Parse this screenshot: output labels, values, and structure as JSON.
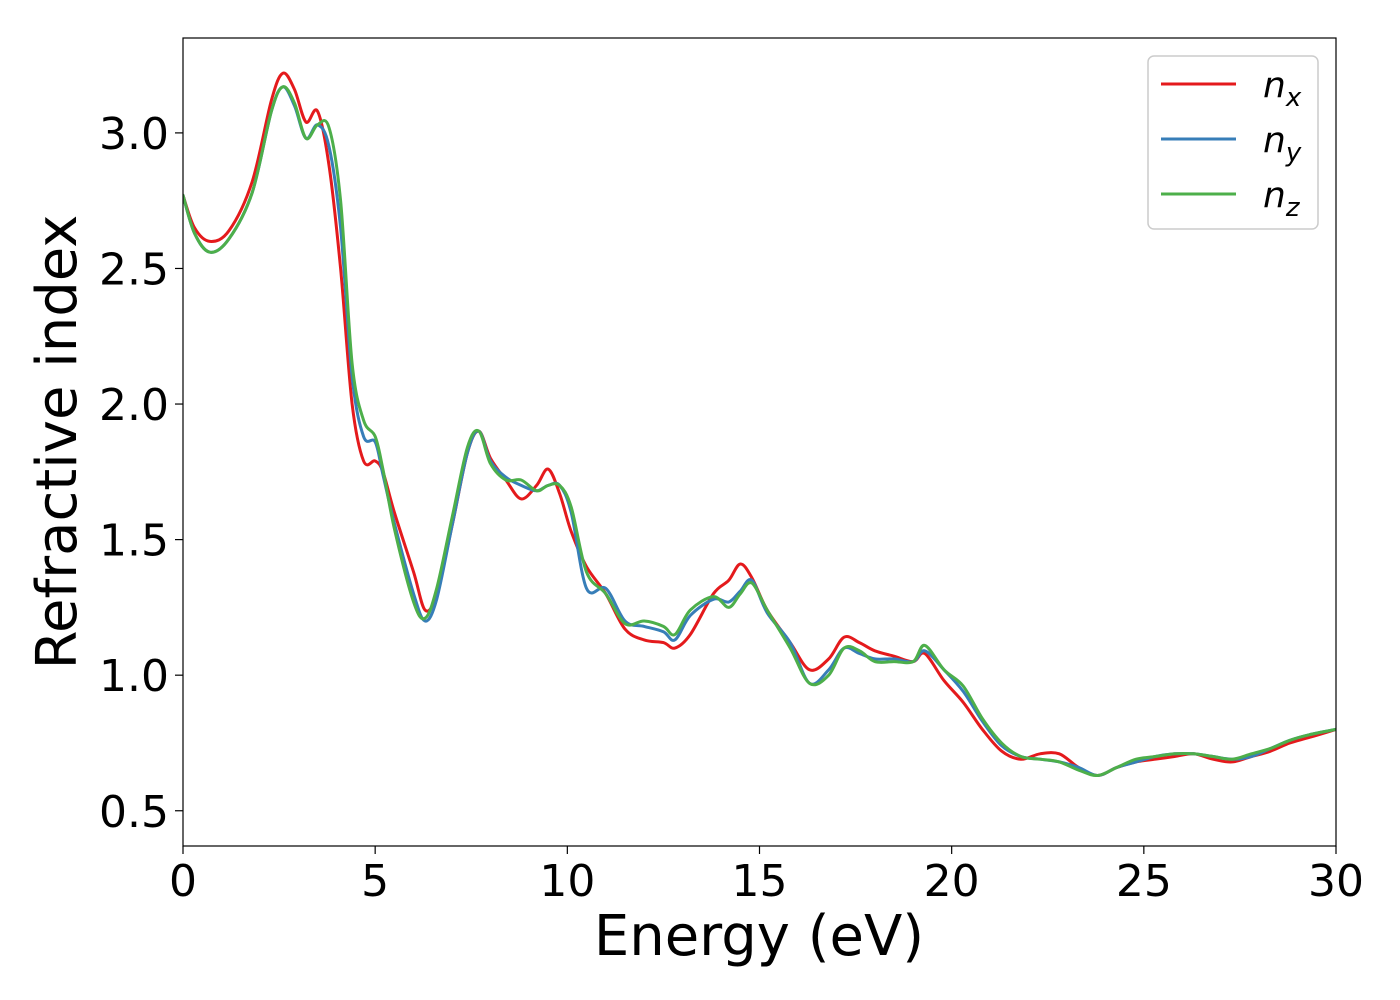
{
  "chart_data": {
    "type": "line",
    "xlabel": "Energy (eV)",
    "ylabel": "Refractive index",
    "xlim": [
      0,
      30
    ],
    "ylim": [
      0.37,
      3.35
    ],
    "xticks": [
      0,
      5,
      10,
      15,
      20,
      25,
      30
    ],
    "xtick_labels": [
      "0",
      "5",
      "10",
      "15",
      "20",
      "25",
      "30"
    ],
    "yticks": [
      0.5,
      1.0,
      1.5,
      2.0,
      2.5,
      3.0
    ],
    "ytick_labels": [
      "0.5",
      "1.0",
      "1.5",
      "2.0",
      "2.5",
      "3.0"
    ],
    "grid": false,
    "legend_position": "top-right",
    "series": [
      {
        "name": "n_x",
        "legend_base": "n",
        "legend_sub": "x",
        "color": "#e41a1c",
        "x": [
          0,
          0.3,
          0.7,
          1.2,
          1.8,
          2.3,
          2.6,
          2.9,
          3.2,
          3.5,
          3.8,
          4.1,
          4.4,
          4.7,
          5.0,
          5.2,
          5.5,
          6.0,
          6.3,
          6.6,
          7.0,
          7.4,
          7.7,
          8.0,
          8.4,
          8.8,
          9.2,
          9.5,
          9.8,
          10.1,
          10.5,
          11.0,
          11.5,
          12.0,
          12.5,
          12.8,
          13.2,
          13.8,
          14.2,
          14.5,
          14.8,
          15.2,
          15.8,
          16.3,
          16.8,
          17.2,
          17.6,
          18.0,
          18.5,
          19.0,
          19.3,
          19.8,
          20.3,
          20.8,
          21.3,
          21.8,
          22.3,
          22.8,
          23.3,
          23.8,
          24.3,
          24.8,
          25.3,
          25.8,
          26.3,
          26.8,
          27.3,
          27.8,
          28.3,
          28.8,
          29.3,
          30.0
        ],
        "y": [
          2.77,
          2.65,
          2.6,
          2.64,
          2.82,
          3.12,
          3.22,
          3.16,
          3.04,
          3.08,
          2.88,
          2.5,
          2.0,
          1.79,
          1.79,
          1.75,
          1.6,
          1.38,
          1.24,
          1.3,
          1.55,
          1.82,
          1.9,
          1.8,
          1.72,
          1.65,
          1.7,
          1.76,
          1.67,
          1.53,
          1.4,
          1.3,
          1.17,
          1.13,
          1.12,
          1.1,
          1.15,
          1.3,
          1.35,
          1.41,
          1.36,
          1.24,
          1.12,
          1.02,
          1.06,
          1.14,
          1.12,
          1.09,
          1.07,
          1.05,
          1.08,
          0.98,
          0.9,
          0.8,
          0.72,
          0.69,
          0.71,
          0.71,
          0.66,
          0.63,
          0.66,
          0.68,
          0.69,
          0.7,
          0.71,
          0.69,
          0.68,
          0.7,
          0.72,
          0.75,
          0.77,
          0.8
        ]
      },
      {
        "name": "n_y",
        "legend_base": "n",
        "legend_sub": "y",
        "color": "#377eb8",
        "x": [
          0,
          0.3,
          0.7,
          1.2,
          1.8,
          2.3,
          2.6,
          2.9,
          3.2,
          3.5,
          3.8,
          4.1,
          4.4,
          4.7,
          5.0,
          5.2,
          5.5,
          6.0,
          6.3,
          6.6,
          7.0,
          7.4,
          7.7,
          8.0,
          8.4,
          8.8,
          9.2,
          9.5,
          9.8,
          10.1,
          10.5,
          11.0,
          11.5,
          12.0,
          12.5,
          12.8,
          13.2,
          13.8,
          14.2,
          14.5,
          14.8,
          15.2,
          15.8,
          16.3,
          16.8,
          17.2,
          17.6,
          18.0,
          18.5,
          19.0,
          19.3,
          19.8,
          20.3,
          20.8,
          21.3,
          21.8,
          22.3,
          22.8,
          23.3,
          23.8,
          24.3,
          24.8,
          25.3,
          25.8,
          26.3,
          26.8,
          27.3,
          27.8,
          28.3,
          28.8,
          29.3,
          30.0
        ],
        "y": [
          2.77,
          2.63,
          2.56,
          2.61,
          2.78,
          3.08,
          3.17,
          3.1,
          2.98,
          3.03,
          2.95,
          2.65,
          2.1,
          1.88,
          1.86,
          1.74,
          1.56,
          1.3,
          1.2,
          1.28,
          1.55,
          1.82,
          1.9,
          1.79,
          1.73,
          1.7,
          1.68,
          1.7,
          1.7,
          1.6,
          1.32,
          1.32,
          1.2,
          1.18,
          1.16,
          1.13,
          1.22,
          1.28,
          1.27,
          1.31,
          1.35,
          1.23,
          1.12,
          0.97,
          1.02,
          1.1,
          1.08,
          1.06,
          1.06,
          1.05,
          1.09,
          1.02,
          0.94,
          0.83,
          0.74,
          0.7,
          0.69,
          0.68,
          0.66,
          0.63,
          0.66,
          0.68,
          0.7,
          0.71,
          0.71,
          0.7,
          0.69,
          0.7,
          0.73,
          0.76,
          0.78,
          0.8
        ]
      },
      {
        "name": "n_z",
        "legend_base": "n",
        "legend_sub": "z",
        "color": "#4daf4a",
        "x": [
          0,
          0.3,
          0.7,
          1.2,
          1.8,
          2.3,
          2.6,
          2.9,
          3.2,
          3.5,
          3.8,
          4.1,
          4.4,
          4.7,
          5.0,
          5.2,
          5.5,
          6.0,
          6.3,
          6.6,
          7.0,
          7.4,
          7.7,
          8.0,
          8.4,
          8.8,
          9.2,
          9.5,
          9.8,
          10.1,
          10.5,
          11.0,
          11.5,
          12.0,
          12.5,
          12.8,
          13.2,
          13.8,
          14.2,
          14.5,
          14.8,
          15.2,
          15.8,
          16.3,
          16.8,
          17.2,
          17.6,
          18.0,
          18.5,
          19.0,
          19.3,
          19.8,
          20.3,
          20.8,
          21.3,
          21.8,
          22.3,
          22.8,
          23.3,
          23.8,
          24.3,
          24.8,
          25.3,
          25.8,
          26.3,
          26.8,
          27.3,
          27.8,
          28.3,
          28.8,
          29.3,
          30.0
        ],
        "y": [
          2.77,
          2.63,
          2.56,
          2.61,
          2.78,
          3.08,
          3.17,
          3.11,
          2.98,
          3.03,
          3.02,
          2.75,
          2.15,
          1.94,
          1.88,
          1.76,
          1.54,
          1.27,
          1.21,
          1.32,
          1.58,
          1.84,
          1.9,
          1.78,
          1.72,
          1.72,
          1.68,
          1.7,
          1.7,
          1.62,
          1.38,
          1.3,
          1.19,
          1.2,
          1.18,
          1.15,
          1.24,
          1.29,
          1.25,
          1.3,
          1.34,
          1.24,
          1.1,
          0.97,
          1.0,
          1.1,
          1.09,
          1.05,
          1.05,
          1.05,
          1.11,
          1.02,
          0.96,
          0.84,
          0.75,
          0.7,
          0.69,
          0.68,
          0.65,
          0.63,
          0.66,
          0.69,
          0.7,
          0.71,
          0.71,
          0.7,
          0.69,
          0.71,
          0.73,
          0.76,
          0.78,
          0.8
        ]
      }
    ]
  }
}
